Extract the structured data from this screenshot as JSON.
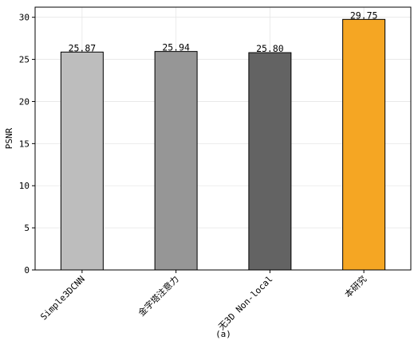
{
  "chart_data": {
    "type": "bar",
    "title": "",
    "xlabel": "",
    "ylabel": "PSNR",
    "caption": "(a)",
    "categories": [
      "Simple3DCNN",
      "金字塔注意力",
      "无3D Non-local",
      "本研究"
    ],
    "values": [
      25.87,
      25.94,
      25.8,
      29.75
    ],
    "value_labels": [
      "25.87",
      "25.94",
      "25.80",
      "29.75"
    ],
    "ylim": [
      0,
      31.2
    ],
    "yticks": [
      0,
      5,
      10,
      15,
      20,
      25,
      30
    ],
    "grid": true,
    "legend": "none",
    "bar_colors": [
      "#bdbdbd",
      "#969696",
      "#636363",
      "#f5a623"
    ],
    "bar_edge_color": "#000000"
  }
}
